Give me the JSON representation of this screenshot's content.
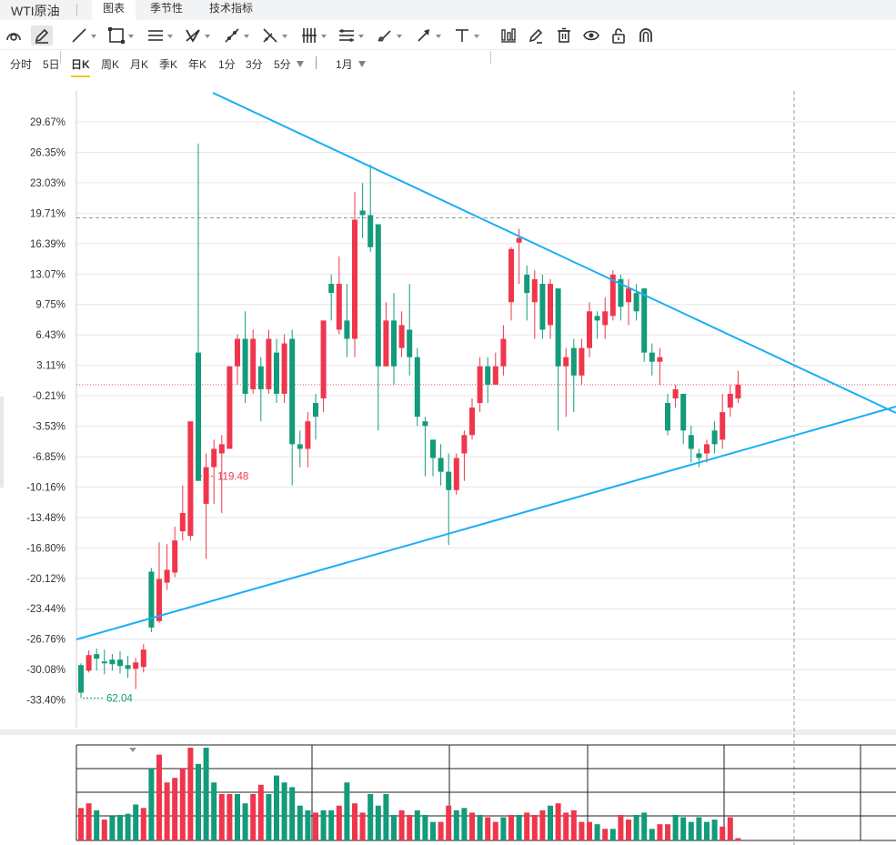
{
  "app_title": "WTI原油",
  "tabs": [
    {
      "label": "图表",
      "active": true
    },
    {
      "label": "季节性",
      "active": false
    },
    {
      "label": "技术指标",
      "active": false
    }
  ],
  "toolbar_icons": [
    "magnet-icon",
    "pencil-icon",
    "line-icon",
    "rectangle-icon",
    "parallel-lines-icon",
    "pattern-icon",
    "measure-icon",
    "fibonacci-icon",
    "vertical-lines-icon",
    "gann-icon",
    "brush-icon",
    "arrow-icon",
    "text-icon",
    "bar-indicator-icon",
    "edit-icon",
    "trash-icon",
    "eye-icon",
    "lock-icon",
    "magnet-u-icon"
  ],
  "periods": [
    {
      "label": "分时",
      "active": false
    },
    {
      "label": "5日",
      "active": false
    },
    {
      "label": "日K",
      "active": true
    },
    {
      "label": "周K",
      "active": false
    },
    {
      "label": "月K",
      "active": false
    },
    {
      "label": "季K",
      "active": false
    },
    {
      "label": "年K",
      "active": false
    },
    {
      "label": "1分",
      "active": false
    },
    {
      "label": "3分",
      "active": false
    },
    {
      "label": "5分",
      "active": false,
      "dropdown": true
    }
  ],
  "month_select": "1月",
  "colors": {
    "up": "#f0364c",
    "down": "#139b7b",
    "trend": "#1aaef5",
    "grid": "#e6e6e6",
    "axis_text": "#333333"
  },
  "chart_data": {
    "type": "candlestick",
    "y_ticks": [
      "29.67%",
      "26.35%",
      "23.03%",
      "19.71%",
      "16.39%",
      "13.07%",
      "9.75%",
      "6.43%",
      "3.11%",
      "-0.21%",
      "-3.53%",
      "-6.85%",
      "-10.16%",
      "-13.48%",
      "-16.80%",
      "-20.12%",
      "-23.44%",
      "-26.76%",
      "-30.08%",
      "-33.40%"
    ],
    "y_range": [
      -33.4,
      29.67
    ],
    "high_label": "119.48",
    "low_label": "62.04",
    "crosshair_y": 19.2,
    "last_line_y": 1.0,
    "candles": [
      [
        -29.6,
        -32.6,
        -29.4,
        -33.2
      ],
      [
        -30.2,
        -28.5,
        -28.0,
        -30.4
      ],
      [
        -28.4,
        -28.9,
        -27.8,
        -30.2
      ],
      [
        -29.2,
        -29.4,
        -27.9,
        -30.6
      ],
      [
        -29.0,
        -29.5,
        -28.4,
        -30.2
      ],
      [
        -29.0,
        -29.7,
        -28.1,
        -30.5
      ],
      [
        -29.6,
        -30.0,
        -28.6,
        -31.0
      ],
      [
        -30.0,
        -29.3,
        -28.8,
        -32.2
      ],
      [
        -29.8,
        -27.9,
        -27.3,
        -30.4
      ],
      [
        -19.4,
        -25.5,
        -19.0,
        -26.0
      ],
      [
        -24.8,
        -20.2,
        -16.2,
        -25.0
      ],
      [
        -20.6,
        -19.2,
        -16.4,
        -21.4
      ],
      [
        -19.5,
        -16.0,
        -14.5,
        -20.0
      ],
      [
        -15.0,
        -13.0,
        -10.0,
        -16.0
      ],
      [
        -15.5,
        -3.0,
        -3.2,
        -16.0
      ],
      [
        4.5,
        -9.5,
        -9.0,
        27.3
      ],
      [
        -12.0,
        -8.0,
        -6.5,
        -18.0
      ],
      [
        -8.0,
        -6.0,
        -5.0,
        -12.0
      ],
      [
        -6.5,
        -5.5,
        -4.5,
        -13.0
      ],
      [
        -6.0,
        3.0,
        3.0,
        -6.0
      ],
      [
        3.0,
        6.0,
        6.5,
        1.0
      ],
      [
        6.0,
        0.0,
        9.0,
        -1.0
      ],
      [
        0.5,
        6.0,
        7.0,
        0.0
      ],
      [
        3.0,
        0.5,
        4.0,
        -3.0
      ],
      [
        0.5,
        6.0,
        7.0,
        0.0
      ],
      [
        4.5,
        0.0,
        6.0,
        -1.0
      ],
      [
        0.0,
        5.5,
        6.5,
        -1.0
      ],
      [
        6.0,
        -5.5,
        7.0,
        -10.0
      ],
      [
        -5.5,
        -6.0,
        -4.0,
        -8.0
      ],
      [
        -6.0,
        -3.0,
        -2.0,
        -8.0
      ],
      [
        -1.0,
        -2.5,
        0.0,
        -5.0
      ],
      [
        -0.5,
        8.0,
        8.0,
        -2.0
      ],
      [
        12.0,
        11.0,
        13.0,
        8.0
      ],
      [
        7.0,
        12.0,
        15.0,
        6.5
      ],
      [
        8.0,
        6.0,
        12.0,
        4.0
      ],
      [
        6.0,
        19.0,
        22.0,
        4.0
      ],
      [
        20.0,
        19.5,
        23.0,
        17.0
      ],
      [
        19.5,
        16.0,
        25.0,
        15.5
      ],
      [
        18.5,
        3.0,
        16.0,
        -4.0
      ],
      [
        3.0,
        8.0,
        10.0,
        3.0
      ],
      [
        8.0,
        3.0,
        11.0,
        1.0
      ],
      [
        5.0,
        7.5,
        9.0,
        4.0
      ],
      [
        7.0,
        4.0,
        12.0,
        2.0
      ],
      [
        4.0,
        -2.5,
        5.0,
        -3.5
      ],
      [
        -3.0,
        -3.5,
        -2.5,
        -9.0
      ],
      [
        -5.0,
        -7.0,
        -5.0,
        -9.0
      ],
      [
        -7.0,
        -8.5,
        -5.5,
        -10.0
      ],
      [
        -8.5,
        -10.5,
        -6.5,
        -16.5
      ],
      [
        -10.5,
        -7.0,
        -6.5,
        -11.0
      ],
      [
        -6.5,
        -4.5,
        -4.0,
        -9.5
      ],
      [
        -4.5,
        -1.5,
        -0.5,
        -5.0
      ],
      [
        -1.0,
        3.0,
        4.0,
        -2.0
      ],
      [
        3.0,
        1.0,
        4.0,
        -1.0
      ],
      [
        1.0,
        3.0,
        4.5,
        1.0
      ],
      [
        3.0,
        6.0,
        7.5,
        2.0
      ],
      [
        10.0,
        15.8,
        16.0,
        8.0
      ],
      [
        16.5,
        17.0,
        18.0,
        12.0
      ],
      [
        13.0,
        11.0,
        14.0,
        8.0
      ],
      [
        10.0,
        12.5,
        13.5,
        6.0
      ],
      [
        12.0,
        7.0,
        13.0,
        6.0
      ],
      [
        7.5,
        12.0,
        12.5,
        6.0
      ],
      [
        11.5,
        3.0,
        11.5,
        -4.0
      ],
      [
        3.0,
        4.0,
        5.0,
        -2.5
      ],
      [
        5.0,
        2.0,
        6.0,
        -2.0
      ],
      [
        2.0,
        5.0,
        6.0,
        1.0
      ],
      [
        5.0,
        9.0,
        10.0,
        4.0
      ],
      [
        8.5,
        8.0,
        9.0,
        6.0
      ],
      [
        7.5,
        9.0,
        10.5,
        6.0
      ],
      [
        8.5,
        13.0,
        13.5,
        8.0
      ],
      [
        12.5,
        9.5,
        13.0,
        8.0
      ],
      [
        10.0,
        11.5,
        12.5,
        7.5
      ],
      [
        11.0,
        9.0,
        12.0,
        8.0
      ],
      [
        11.5,
        4.5,
        11.5,
        3.5
      ],
      [
        4.5,
        3.5,
        5.5,
        2.0
      ],
      [
        3.5,
        4.0,
        5.0,
        1.0
      ],
      [
        -1.0,
        -4.0,
        0.0,
        -4.5
      ],
      [
        -0.5,
        0.5,
        1.0,
        -1.5
      ],
      [
        0.0,
        -4.0,
        0.0,
        -5.5
      ],
      [
        -4.5,
        -6.0,
        -3.5,
        -7.5
      ],
      [
        -6.5,
        -7.0,
        -6.0,
        -8.0
      ],
      [
        -6.5,
        -5.5,
        -5.0,
        -7.5
      ],
      [
        -4.0,
        -5.5,
        -3.0,
        -6.5
      ],
      [
        -5.0,
        -2.0,
        0.0,
        -6.0
      ],
      [
        -1.5,
        0.0,
        1.0,
        -2.5
      ],
      [
        -0.5,
        1.0,
        2.5,
        -1.0
      ]
    ],
    "volumes": [
      [
        28,
        1
      ],
      [
        32,
        1
      ],
      [
        26,
        0
      ],
      [
        18,
        1
      ],
      [
        21,
        0
      ],
      [
        22,
        0
      ],
      [
        23,
        0
      ],
      [
        31,
        0
      ],
      [
        28,
        1
      ],
      [
        62,
        0
      ],
      [
        74,
        1
      ],
      [
        50,
        1
      ],
      [
        54,
        1
      ],
      [
        62,
        1
      ],
      [
        80,
        1
      ],
      [
        66,
        0
      ],
      [
        80,
        0
      ],
      [
        50,
        0
      ],
      [
        40,
        1
      ],
      [
        40,
        1
      ],
      [
        40,
        0
      ],
      [
        32,
        0
      ],
      [
        40,
        1
      ],
      [
        48,
        1
      ],
      [
        40,
        0
      ],
      [
        56,
        0
      ],
      [
        50,
        0
      ],
      [
        46,
        0
      ],
      [
        30,
        0
      ],
      [
        26,
        0
      ],
      [
        24,
        1
      ],
      [
        26,
        0
      ],
      [
        26,
        0
      ],
      [
        30,
        1
      ],
      [
        50,
        0
      ],
      [
        32,
        1
      ],
      [
        24,
        1
      ],
      [
        40,
        0
      ],
      [
        30,
        0
      ],
      [
        40,
        0
      ],
      [
        22,
        0
      ],
      [
        26,
        1
      ],
      [
        22,
        1
      ],
      [
        26,
        0
      ],
      [
        22,
        0
      ],
      [
        16,
        0
      ],
      [
        16,
        1
      ],
      [
        30,
        1
      ],
      [
        26,
        0
      ],
      [
        28,
        0
      ],
      [
        24,
        1
      ],
      [
        22,
        0
      ],
      [
        20,
        1
      ],
      [
        16,
        1
      ],
      [
        20,
        0
      ],
      [
        22,
        1
      ],
      [
        22,
        0
      ],
      [
        24,
        1
      ],
      [
        22,
        1
      ],
      [
        26,
        1
      ],
      [
        30,
        0
      ],
      [
        32,
        1
      ],
      [
        24,
        1
      ],
      [
        26,
        1
      ],
      [
        16,
        1
      ],
      [
        16,
        1
      ],
      [
        14,
        0
      ],
      [
        10,
        1
      ],
      [
        10,
        0
      ],
      [
        22,
        1
      ],
      [
        18,
        1
      ],
      [
        22,
        0
      ],
      [
        24,
        0
      ],
      [
        10,
        0
      ],
      [
        14,
        1
      ],
      [
        14,
        1
      ],
      [
        22,
        0
      ],
      [
        20,
        0
      ],
      [
        16,
        0
      ],
      [
        20,
        0
      ],
      [
        16,
        0
      ],
      [
        18,
        0
      ],
      [
        12,
        1
      ],
      [
        20,
        1
      ],
      [
        2,
        1
      ]
    ]
  }
}
